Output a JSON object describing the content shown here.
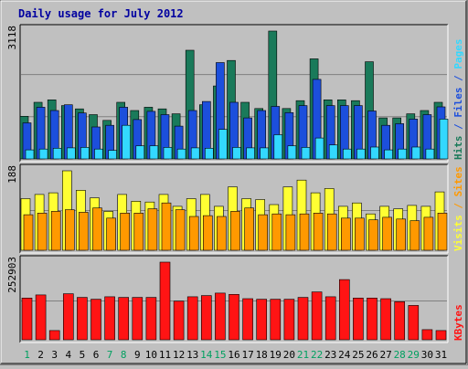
{
  "title": "Daily usage for July 2012",
  "colors": {
    "hits": "#1a7a5a",
    "files": "#1c4fdc",
    "pages": "#33d8ff",
    "visits": "#ffff33",
    "sites": "#ff9900",
    "kbytes": "#ff1414",
    "title": "#0000a0",
    "panel_bg": "#c0c0c0"
  },
  "chart_data": {
    "type": "bar",
    "title": "Daily usage for July 2012",
    "categories": [
      "1",
      "2",
      "3",
      "4",
      "5",
      "6",
      "7",
      "8",
      "9",
      "10",
      "11",
      "12",
      "13",
      "14",
      "15",
      "16",
      "17",
      "18",
      "19",
      "20",
      "21",
      "22",
      "23",
      "24",
      "25",
      "26",
      "27",
      "28",
      "29",
      "30",
      "31"
    ],
    "weekend_days": [
      "1",
      "7",
      "8",
      "14",
      "15",
      "21",
      "22",
      "28",
      "29"
    ],
    "panels": [
      {
        "id": "hits-panel",
        "y_tick_label": "3118",
        "ymax": 3118,
        "axis_label": [
          {
            "text": "Hits",
            "color_key": "hits"
          },
          {
            "text": " / ",
            "color_key": "files"
          },
          {
            "text": "Files",
            "color_key": "files"
          },
          {
            "text": " / ",
            "color_key": "files"
          },
          {
            "text": "Pages",
            "color_key": "pages"
          }
        ],
        "series": [
          {
            "name": "Hits",
            "color_key": "hits",
            "values": [
              1040,
              1380,
              1440,
              1300,
              1220,
              1080,
              940,
              1380,
              1180,
              1260,
              1220,
              1100,
              2650,
              1320,
              1780,
              2400,
              1380,
              1230,
              3118,
              1230,
              1420,
              2440,
              1440,
              1440,
              1420,
              2370,
              1000,
              1000,
              1100,
              1180,
              1380
            ]
          },
          {
            "name": "Files",
            "color_key": "files",
            "values": [
              880,
              1260,
              1180,
              1320,
              1120,
              780,
              820,
              1260,
              960,
              1160,
              1080,
              800,
              1180,
              1400,
              2350,
              1380,
              1000,
              1180,
              1280,
              1130,
              1300,
              1940,
              1300,
              1300,
              1300,
              1170,
              820,
              860,
              970,
              1080,
              1270
            ]
          },
          {
            "name": "Pages",
            "color_key": "pages",
            "values": [
              220,
              240,
              260,
              270,
              280,
              240,
              210,
              820,
              320,
              320,
              280,
              240,
              270,
              260,
              720,
              280,
              270,
              270,
              590,
              320,
              280,
              510,
              340,
              240,
              240,
              290,
              220,
              240,
              290,
              240,
              970
            ]
          }
        ]
      },
      {
        "id": "visits-panel",
        "y_tick_label": "188",
        "ymax": 188,
        "axis_label": [
          {
            "text": "Visits",
            "color_key": "visits"
          },
          {
            "text": " / ",
            "color_key": "sites"
          },
          {
            "text": "Sites",
            "color_key": "sites"
          }
        ],
        "series": [
          {
            "name": "Visits",
            "color_key": "visits",
            "values": [
              122,
              132,
              136,
              188,
              142,
              124,
              92,
              132,
              116,
              114,
              132,
              104,
              122,
              132,
              104,
              150,
              122,
              120,
              108,
              150,
              166,
              136,
              146,
              104,
              112,
              86,
              104,
              98,
              106,
              104,
              138
            ]
          },
          {
            "name": "Sites",
            "color_key": "sites",
            "values": [
              84,
              88,
              92,
              96,
              90,
              100,
              76,
              88,
              88,
              98,
              112,
              96,
              80,
              82,
              80,
              92,
              100,
              84,
              86,
              84,
              86,
              88,
              86,
              76,
              76,
              72,
              78,
              74,
              70,
              78,
              88
            ]
          }
        ]
      },
      {
        "id": "kbytes-panel",
        "y_tick_label": "252903",
        "ymax": 252903,
        "axis_label": [
          {
            "text": "KBytes",
            "color_key": "kbytes"
          }
        ],
        "series": [
          {
            "name": "KBytes",
            "color_key": "kbytes",
            "values": [
              136000,
              146000,
              30000,
              150000,
              138000,
              132000,
              140000,
              138000,
              138000,
              138000,
              252903,
              126000,
              140000,
              144000,
              152000,
              148000,
              134000,
              132000,
              132000,
              132000,
              138000,
              156000,
              140000,
              196000,
              136000,
              136000,
              134000,
              124000,
              112000,
              33000,
              30000
            ]
          }
        ]
      }
    ]
  }
}
